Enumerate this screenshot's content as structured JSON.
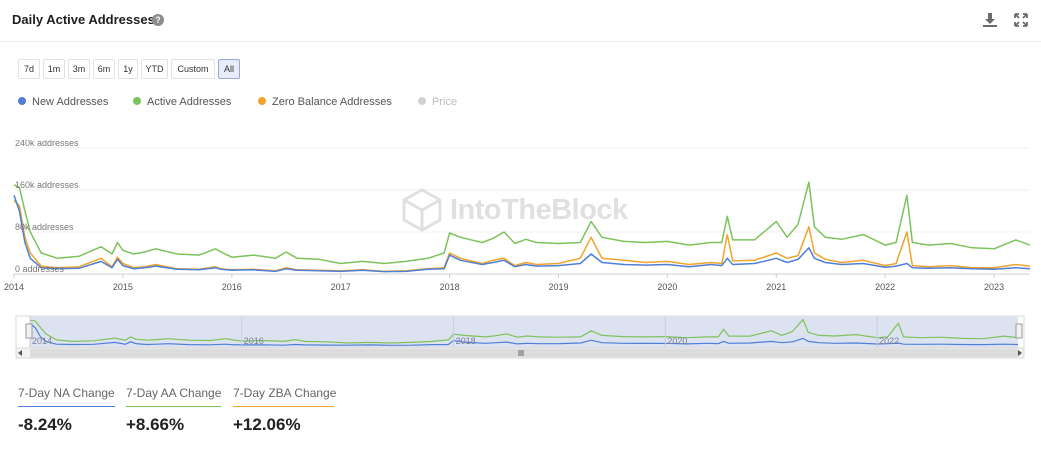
{
  "header": {
    "title": "Daily Active Addresses",
    "help_icon": "question-circle-icon",
    "download_icon": "download-icon",
    "expand_icon": "expand-icon"
  },
  "ranges": [
    "7d",
    "1m",
    "3m",
    "6m",
    "1y",
    "YTD",
    "Custom",
    "All"
  ],
  "active_range": "All",
  "legend": [
    {
      "label": "New Addresses",
      "color": "#4f7fd6",
      "visible": true
    },
    {
      "label": "Active Addresses",
      "color": "#7dc35b",
      "visible": true
    },
    {
      "label": "Zero Balance Addresses",
      "color": "#f0a42b",
      "visible": true
    },
    {
      "label": "Price",
      "color": "#d0d0d0",
      "visible": false
    }
  ],
  "watermark": "IntoTheBlock",
  "navigator": {
    "tick_labels": [
      "2014",
      "2016",
      "2018",
      "2020",
      "2022"
    ]
  },
  "stats": [
    {
      "label": "7-Day NA Change",
      "value": "-8.24%",
      "color": "#4f7fd6"
    },
    {
      "label": "7-Day AA Change",
      "value": "+8.66%",
      "color": "#7dc35b"
    },
    {
      "label": "7-Day ZBA Change",
      "value": "+12.06%",
      "color": "#f0a42b"
    }
  ],
  "chart_data": {
    "type": "line",
    "title": "Daily Active Addresses",
    "xlabel": "",
    "ylabel": "",
    "x_range": [
      2014.0,
      2023.33
    ],
    "ylim": [
      0,
      240000
    ],
    "y_ticks": [
      0,
      80000,
      160000,
      240000
    ],
    "y_tick_labels": [
      "0 addresses",
      "80k addresses",
      "160k addresses",
      "240k addresses"
    ],
    "x_tick_labels": [
      "2014",
      "2015",
      "2016",
      "2017",
      "2018",
      "2019",
      "2020",
      "2021",
      "2022",
      "2023"
    ],
    "grid": true,
    "series": [
      {
        "name": "Active Addresses",
        "color": "#7dc35b",
        "x": [
          2014.0,
          2014.05,
          2014.1,
          2014.15,
          2014.25,
          2014.4,
          2014.6,
          2014.8,
          2014.9,
          2014.95,
          2015.0,
          2015.1,
          2015.2,
          2015.3,
          2015.5,
          2015.7,
          2015.85,
          2015.9,
          2016.0,
          2016.2,
          2016.4,
          2016.5,
          2016.6,
          2016.8,
          2017.0,
          2017.2,
          2017.4,
          2017.6,
          2017.8,
          2017.95,
          2018.0,
          2018.1,
          2018.3,
          2018.4,
          2018.5,
          2018.6,
          2018.7,
          2018.8,
          2019.0,
          2019.2,
          2019.3,
          2019.4,
          2019.6,
          2019.8,
          2020.0,
          2020.2,
          2020.4,
          2020.5,
          2020.55,
          2020.6,
          2020.8,
          2021.0,
          2021.1,
          2021.2,
          2021.3,
          2021.35,
          2021.45,
          2021.6,
          2021.8,
          2022.0,
          2022.1,
          2022.2,
          2022.25,
          2022.4,
          2022.6,
          2022.8,
          2023.0,
          2023.2,
          2023.33
        ],
        "values": [
          170000,
          165000,
          120000,
          80000,
          40000,
          30000,
          34000,
          52000,
          38000,
          60000,
          45000,
          38000,
          42000,
          48000,
          38000,
          36000,
          48000,
          42000,
          32000,
          36000,
          30000,
          42000,
          30000,
          28000,
          20000,
          24000,
          20000,
          24000,
          30000,
          40000,
          78000,
          70000,
          60000,
          68000,
          80000,
          58000,
          66000,
          60000,
          58000,
          60000,
          100000,
          70000,
          62000,
          60000,
          62000,
          55000,
          60000,
          60000,
          110000,
          65000,
          65000,
          100000,
          70000,
          95000,
          175000,
          90000,
          70000,
          66000,
          75000,
          55000,
          60000,
          150000,
          60000,
          55000,
          58000,
          50000,
          48000,
          65000,
          55000
        ]
      },
      {
        "name": "Zero Balance Addresses",
        "color": "#f0a42b",
        "x": [
          2014.0,
          2014.05,
          2014.1,
          2014.15,
          2014.25,
          2014.4,
          2014.6,
          2014.8,
          2014.9,
          2014.95,
          2015.0,
          2015.1,
          2015.2,
          2015.3,
          2015.5,
          2015.7,
          2015.85,
          2015.9,
          2016.0,
          2016.2,
          2016.4,
          2016.5,
          2016.6,
          2016.8,
          2017.0,
          2017.2,
          2017.4,
          2017.6,
          2017.8,
          2017.95,
          2018.0,
          2018.1,
          2018.3,
          2018.4,
          2018.5,
          2018.6,
          2018.7,
          2018.8,
          2019.0,
          2019.2,
          2019.3,
          2019.4,
          2019.6,
          2019.8,
          2020.0,
          2020.2,
          2020.4,
          2020.5,
          2020.55,
          2020.6,
          2020.8,
          2021.0,
          2021.1,
          2021.2,
          2021.3,
          2021.35,
          2021.45,
          2021.6,
          2021.8,
          2022.0,
          2022.1,
          2022.2,
          2022.25,
          2022.4,
          2022.6,
          2022.8,
          2023.0,
          2023.2,
          2023.33
        ],
        "values": [
          140000,
          130000,
          70000,
          40000,
          15000,
          12000,
          14000,
          30000,
          14000,
          32000,
          20000,
          12000,
          14000,
          18000,
          10000,
          9000,
          14000,
          10000,
          8000,
          9000,
          6000,
          12000,
          8000,
          7000,
          6000,
          8000,
          5000,
          6000,
          10000,
          12000,
          40000,
          30000,
          20000,
          26000,
          30000,
          16000,
          22000,
          18000,
          20000,
          30000,
          70000,
          30000,
          26000,
          22000,
          24000,
          18000,
          22000,
          20000,
          75000,
          25000,
          26000,
          40000,
          30000,
          35000,
          90000,
          40000,
          28000,
          22000,
          26000,
          16000,
          20000,
          80000,
          16000,
          14000,
          16000,
          12000,
          12000,
          18000,
          15000
        ]
      },
      {
        "name": "New Addresses",
        "color": "#4f7fd6",
        "x": [
          2014.0,
          2014.05,
          2014.1,
          2014.15,
          2014.25,
          2014.4,
          2014.6,
          2014.8,
          2014.9,
          2014.95,
          2015.0,
          2015.1,
          2015.2,
          2015.3,
          2015.5,
          2015.7,
          2015.85,
          2015.9,
          2016.0,
          2016.2,
          2016.4,
          2016.5,
          2016.6,
          2016.8,
          2017.0,
          2017.2,
          2017.4,
          2017.6,
          2017.8,
          2017.95,
          2018.0,
          2018.1,
          2018.3,
          2018.4,
          2018.5,
          2018.6,
          2018.7,
          2018.8,
          2019.0,
          2019.2,
          2019.3,
          2019.4,
          2019.6,
          2019.8,
          2020.0,
          2020.2,
          2020.4,
          2020.5,
          2020.55,
          2020.6,
          2020.8,
          2021.0,
          2021.1,
          2021.2,
          2021.3,
          2021.35,
          2021.45,
          2021.6,
          2021.8,
          2022.0,
          2022.1,
          2022.2,
          2022.25,
          2022.4,
          2022.6,
          2022.8,
          2023.0,
          2023.2,
          2023.33
        ],
        "values": [
          150000,
          120000,
          60000,
          30000,
          12000,
          10000,
          11000,
          24000,
          12000,
          28000,
          16000,
          10000,
          12000,
          15000,
          9000,
          8000,
          12000,
          9000,
          7000,
          8000,
          5000,
          10000,
          7000,
          6000,
          5000,
          7000,
          4500,
          5000,
          9000,
          10000,
          36000,
          26000,
          18000,
          22000,
          26000,
          14000,
          18000,
          15000,
          16000,
          20000,
          38000,
          22000,
          18000,
          17000,
          18000,
          14000,
          18000,
          16000,
          30000,
          18000,
          20000,
          30000,
          22000,
          28000,
          50000,
          30000,
          22000,
          18000,
          20000,
          13000,
          15000,
          20000,
          12000,
          11000,
          12000,
          10000,
          9000,
          12000,
          10000
        ]
      }
    ]
  }
}
